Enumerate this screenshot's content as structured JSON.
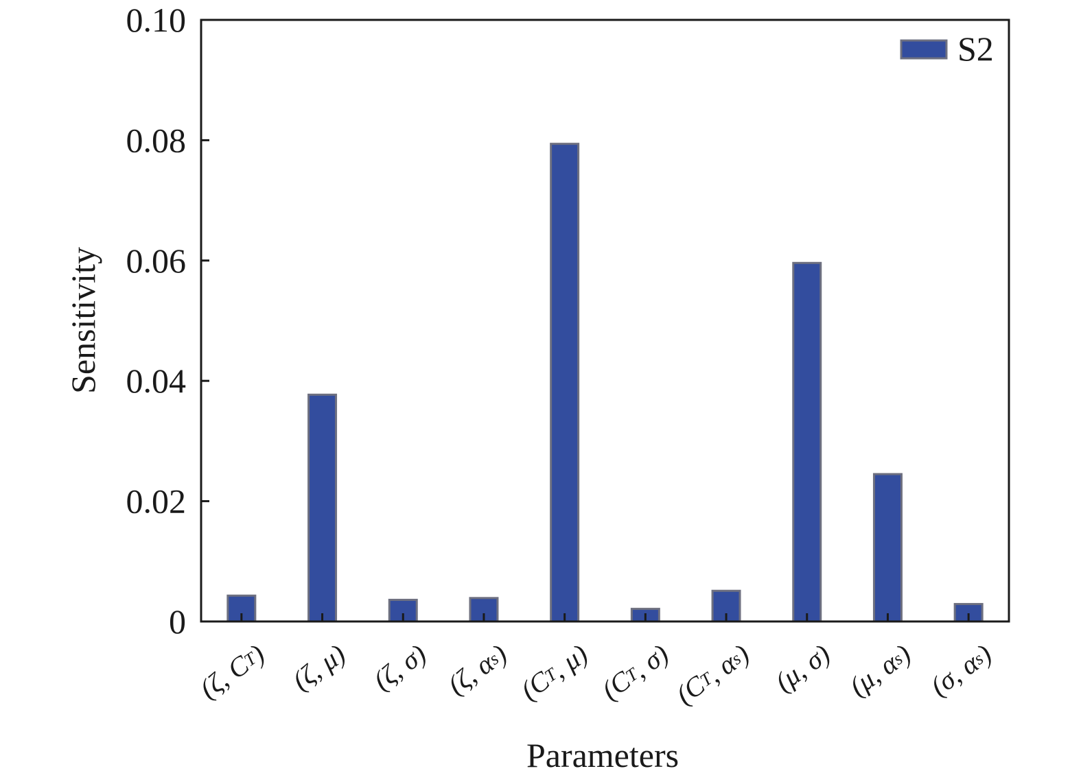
{
  "chart_data": {
    "type": "bar",
    "categories": [
      "(ζ, C_T)",
      "(ζ, μ)",
      "(ζ, σ)",
      "(ζ, α_s)",
      "(C_T, μ)",
      "(C_T, σ)",
      "(C_T, α_s)",
      "(μ, σ)",
      "(μ, α_s)",
      "(σ, α_s)"
    ],
    "series": [
      {
        "name": "S2",
        "values": [
          0.0043,
          0.0377,
          0.0036,
          0.0039,
          0.0794,
          0.0021,
          0.0051,
          0.0596,
          0.0245,
          0.0029
        ]
      }
    ],
    "xlabel": "Parameters",
    "ylabel": "Sensitivity",
    "ylim": [
      0,
      0.1
    ],
    "yticks": [
      0,
      0.02,
      0.04,
      0.06,
      0.08,
      0.1
    ],
    "ytick_labels": [
      "0",
      "0.02",
      "0.04",
      "0.06",
      "0.08",
      "0.10"
    ],
    "grid": false,
    "legend_position": "top-right",
    "colors": {
      "bar_fill": "#334d9e",
      "bar_edge": "#6e7080",
      "axis": "#1a1a1a"
    }
  }
}
